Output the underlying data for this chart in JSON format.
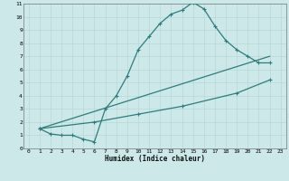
{
  "line1_x": [
    1,
    2,
    3,
    4,
    5,
    6,
    7,
    8,
    9,
    10,
    11,
    12,
    13,
    14,
    15,
    16,
    17,
    18,
    19,
    20,
    21,
    22
  ],
  "line1_y": [
    1.5,
    1.1,
    1.0,
    1.0,
    0.7,
    0.5,
    3.0,
    4.0,
    5.5,
    7.5,
    8.5,
    9.5,
    10.2,
    10.5,
    11.1,
    10.6,
    9.3,
    8.2,
    7.5,
    7.0,
    6.5,
    6.5
  ],
  "line2_x": [
    1,
    6,
    10,
    14,
    19,
    22
  ],
  "line2_y": [
    1.5,
    2.0,
    2.6,
    3.2,
    4.2,
    5.2
  ],
  "line3_x": [
    1,
    22
  ],
  "line3_y": [
    1.5,
    7.0
  ],
  "color": "#2d7d7d",
  "bg_color": "#cce8e8",
  "grid_color": "#b8d8d8",
  "xlabel": "Humidex (Indice chaleur)",
  "xlim": [
    -0.5,
    23.5
  ],
  "ylim": [
    0,
    11
  ],
  "xticks": [
    0,
    1,
    2,
    3,
    4,
    5,
    6,
    7,
    8,
    9,
    10,
    11,
    12,
    13,
    14,
    15,
    16,
    17,
    18,
    19,
    20,
    21,
    22,
    23
  ],
  "yticks": [
    0,
    1,
    2,
    3,
    4,
    5,
    6,
    7,
    8,
    9,
    10,
    11
  ],
  "marker": "+",
  "markersize": 3,
  "linewidth": 0.9
}
